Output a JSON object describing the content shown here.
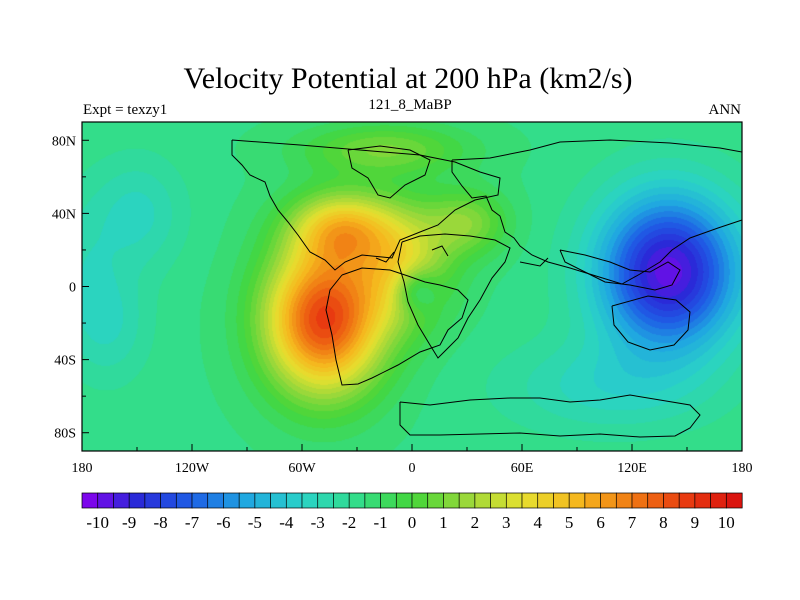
{
  "chart_data": {
    "type": "heatmap",
    "title": "Velocity Potential at 200 hPa (km2/s)",
    "left_label": "Expt = texzy1",
    "center_label": "121_8_MaBP",
    "right_label": "ANN",
    "xlim": [
      -180,
      180
    ],
    "ylim": [
      -90,
      90
    ],
    "x_ticks": [
      {
        "value": -180,
        "label": "180"
      },
      {
        "value": -120,
        "label": "120W"
      },
      {
        "value": -60,
        "label": "60W"
      },
      {
        "value": 0,
        "label": "0"
      },
      {
        "value": 60,
        "label": "60E"
      },
      {
        "value": 120,
        "label": "120E"
      },
      {
        "value": 180,
        "label": "180"
      }
    ],
    "y_ticks": [
      {
        "value": 80,
        "label": "80N"
      },
      {
        "value": 40,
        "label": "40N"
      },
      {
        "value": 0,
        "label": "0"
      },
      {
        "value": -40,
        "label": "40S"
      },
      {
        "value": -80,
        "label": "80S"
      }
    ],
    "colorbar": {
      "min": -10.5,
      "max": 10.5,
      "step": 0.5,
      "labels": [
        "-10",
        "-9",
        "-8",
        "-7",
        "-6",
        "-5",
        "-4",
        "-3",
        "-2",
        "-1",
        "0",
        "1",
        "2",
        "3",
        "4",
        "5",
        "6",
        "7",
        "8",
        "9",
        "10"
      ]
    },
    "field_centers": [
      {
        "name": "positive-center-south-america",
        "lon": -48,
        "lat": -18,
        "value": 10.2
      },
      {
        "name": "negative-center-west-pacific",
        "lon": 145,
        "lat": 8,
        "value": -10.3
      }
    ],
    "colormap": [
      "#8a00ee",
      "#2a2ad8",
      "#1e60e6",
      "#20a8e0",
      "#2ad2c8",
      "#33dd8a",
      "#44d63a",
      "#9ad83a",
      "#e6e030",
      "#f5b81e",
      "#f07a14",
      "#e83a10",
      "#d80e0e"
    ]
  }
}
